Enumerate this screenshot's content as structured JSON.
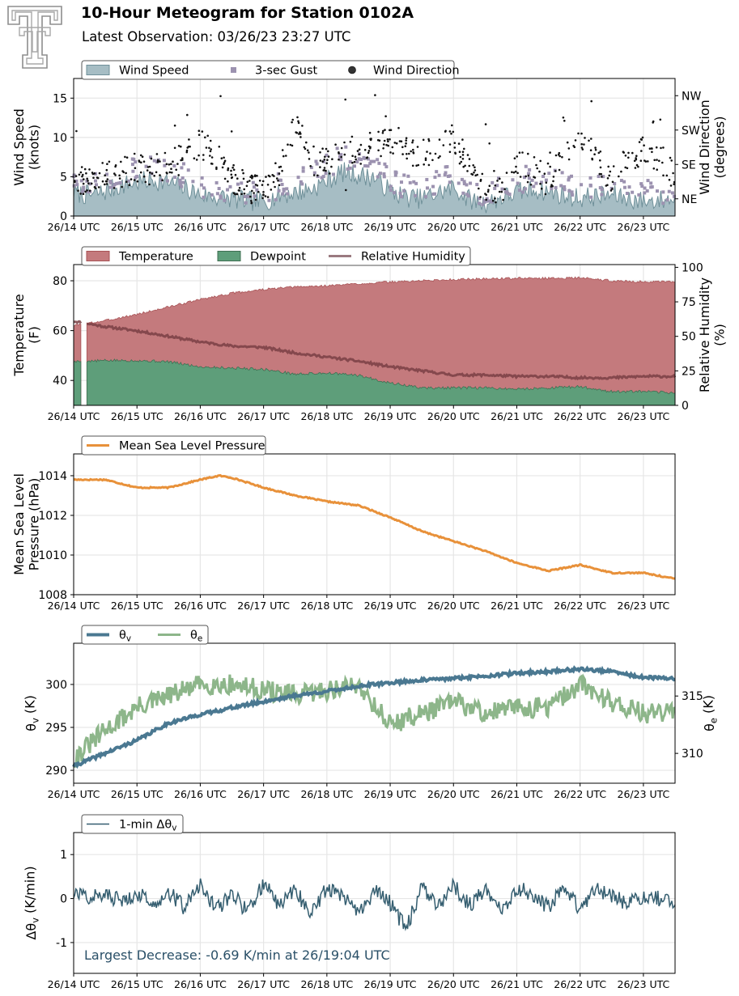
{
  "header": {
    "title": "10-Hour Meteogram for Station 0102A",
    "subtitle": "Latest Observation: 03/26/23 23:27 UTC",
    "logo": "tt-logo-icon"
  },
  "colors": {
    "wind_fill": "#a6bdc4",
    "wind_line": "#6f9099",
    "gust": "#9c92b0",
    "direction": "#111111",
    "temperature": "#c47a7d",
    "temperature_line": "#a85255",
    "dewpoint": "#5e9e7a",
    "dewpoint_line": "#3f6f52",
    "rh": "#7a3f44",
    "pressure": "#e8913a",
    "theta_v": "#4a7891",
    "theta_e": "#8db68a",
    "delta": "#355e70",
    "annotation": "#2a5068",
    "grid": "#e6e6e6"
  },
  "chart_data": [
    {
      "id": "wind",
      "type": "area",
      "title": "",
      "xlabel": "",
      "ylabel": "Wind Speed\n(knots)",
      "ylabel2": "Wind Direction\n(degrees)",
      "x_ticks": [
        "26/14 UTC",
        "26/15 UTC",
        "26/16 UTC",
        "26/17 UTC",
        "26/18 UTC",
        "26/19 UTC",
        "26/20 UTC",
        "26/21 UTC",
        "26/22 UTC",
        "26/23 UTC"
      ],
      "xlim": [
        0,
        9.5
      ],
      "ylim": [
        0,
        17.5
      ],
      "y_ticks": [
        0,
        5,
        10,
        15
      ],
      "ylim2": [
        0,
        360
      ],
      "y2_ticks": [
        {
          "value": 45,
          "label": "NE"
        },
        {
          "value": 135,
          "label": "SE"
        },
        {
          "value": 225,
          "label": "SW"
        },
        {
          "value": 315,
          "label": "NW"
        }
      ],
      "grid": true,
      "legend": {
        "placement": "top-left",
        "entries": [
          "Wind Speed",
          "3-sec Gust",
          "Wind Direction"
        ]
      },
      "series": [
        {
          "name": "Wind Speed",
          "type": "area",
          "x": [
            0,
            0.25,
            0.5,
            0.75,
            1,
            1.25,
            1.5,
            1.75,
            2,
            2.25,
            2.5,
            2.75,
            3,
            3.25,
            3.5,
            3.75,
            4,
            4.25,
            4.5,
            4.75,
            5,
            5.25,
            5.5,
            5.75,
            6,
            6.25,
            6.5,
            6.75,
            7,
            7.25,
            7.5,
            7.75,
            8,
            8.25,
            8.5,
            8.75,
            9,
            9.25,
            9.5
          ],
          "values": [
            3.0,
            2.6,
            3.1,
            3.9,
            4.3,
            4.6,
            4.2,
            3.6,
            2.7,
            2.4,
            2.2,
            1.9,
            1.8,
            2.6,
            3.0,
            3.4,
            4.5,
            5.6,
            5.2,
            4.9,
            3.2,
            2.4,
            2.2,
            2.9,
            3.6,
            2.1,
            1.6,
            2.3,
            3.0,
            3.4,
            3.1,
            2.6,
            2.3,
            2.5,
            2.7,
            2.2,
            1.9,
            2.0,
            2.2
          ]
        },
        {
          "name": "3-sec Gust",
          "type": "scatter",
          "x": [
            0,
            0.25,
            0.5,
            0.75,
            1,
            1.25,
            1.5,
            1.75,
            2,
            2.25,
            2.5,
            2.75,
            3,
            3.25,
            3.5,
            3.75,
            4,
            4.25,
            4.5,
            4.75,
            5,
            5.25,
            5.5,
            5.75,
            6,
            6.25,
            6.5,
            6.75,
            7,
            7.25,
            7.5,
            7.75,
            8,
            8.25,
            8.5,
            8.75,
            9,
            9.25,
            9.5
          ],
          "values": [
            4.4,
            3.8,
            4.5,
            5.2,
            5.8,
            6.0,
            5.5,
            4.9,
            3.7,
            3.3,
            3.0,
            2.6,
            2.5,
            3.6,
            4.1,
            4.6,
            6.0,
            7.3,
            6.8,
            6.4,
            4.4,
            3.3,
            3.0,
            3.9,
            4.9,
            2.9,
            2.3,
            3.2,
            4.1,
            4.6,
            4.2,
            3.6,
            3.2,
            3.4,
            3.7,
            3.0,
            2.6,
            2.8,
            3.0
          ]
        },
        {
          "name": "Wind Direction",
          "type": "scatter",
          "x": [
            0,
            0.25,
            0.5,
            0.75,
            1,
            1.25,
            1.5,
            1.75,
            2,
            2.25,
            2.5,
            2.75,
            3,
            3.25,
            3.5,
            3.75,
            4,
            4.25,
            4.5,
            4.75,
            5,
            5.25,
            5.5,
            5.75,
            6,
            6.25,
            6.5,
            6.75,
            7,
            7.25,
            7.5,
            7.75,
            8,
            8.25,
            8.5,
            8.75,
            9,
            9.25,
            9.5
          ],
          "values": [
            85,
            105,
            110,
            115,
            125,
            120,
            135,
            150,
            195,
            155,
            95,
            75,
            65,
            120,
            245,
            150,
            135,
            165,
            175,
            185,
            205,
            180,
            160,
            180,
            215,
            120,
            70,
            60,
            130,
            120,
            100,
            165,
            200,
            160,
            95,
            145,
            180,
            155,
            100
          ]
        }
      ]
    },
    {
      "id": "thermo",
      "type": "area",
      "title": "",
      "xlabel": "",
      "ylabel": "Temperature\n(F)",
      "ylabel2": "Relative Humidity\n(%)",
      "x_ticks": [
        "26/14 UTC",
        "26/15 UTC",
        "26/16 UTC",
        "26/17 UTC",
        "26/18 UTC",
        "26/19 UTC",
        "26/20 UTC",
        "26/21 UTC",
        "26/22 UTC",
        "26/23 UTC"
      ],
      "xlim": [
        0,
        9.5
      ],
      "ylim": [
        30,
        86.5
      ],
      "y_ticks": [
        40,
        60,
        80
      ],
      "ylim2": [
        0,
        102
      ],
      "y2_ticks": [
        0,
        25,
        50,
        75,
        100
      ],
      "grid": true,
      "legend": {
        "placement": "top-left",
        "entries": [
          "Temperature",
          "Dewpoint",
          "Relative Humidity"
        ]
      },
      "series": [
        {
          "name": "Temperature",
          "type": "area",
          "x": [
            0,
            0.5,
            1,
            1.5,
            2,
            2.5,
            3,
            3.5,
            4,
            4.5,
            5,
            5.5,
            6,
            6.5,
            7,
            7.5,
            8,
            8.5,
            9,
            9.5
          ],
          "values": [
            62.0,
            64.0,
            66.5,
            69.5,
            72.5,
            75.0,
            76.5,
            77.5,
            78.0,
            78.8,
            79.5,
            80.0,
            80.5,
            80.8,
            81.0,
            81.0,
            81.2,
            80.0,
            79.6,
            79.5
          ]
        },
        {
          "name": "Dewpoint",
          "type": "area",
          "x": [
            0,
            0.5,
            1,
            1.5,
            2,
            2.5,
            3,
            3.5,
            4,
            4.5,
            5,
            5.5,
            6,
            6.5,
            7,
            7.5,
            8,
            8.5,
            9,
            9.5
          ],
          "values": [
            47.5,
            48.0,
            48.0,
            47.5,
            45.5,
            45.0,
            44.5,
            42.5,
            43.0,
            42.0,
            39.0,
            37.0,
            37.0,
            37.0,
            36.5,
            37.0,
            37.5,
            35.5,
            35.5,
            35.0
          ]
        },
        {
          "name": "Relative Humidity",
          "type": "line",
          "x": [
            0,
            0.5,
            1,
            1.5,
            2,
            2.5,
            3,
            3.5,
            4,
            4.5,
            5,
            5.5,
            6,
            6.5,
            7,
            7.5,
            8,
            8.5,
            9,
            9.5
          ],
          "values": [
            61,
            57,
            54,
            50,
            46,
            43,
            42,
            38,
            35,
            32,
            28,
            25,
            22,
            22,
            21,
            21,
            20,
            20,
            21,
            21
          ]
        }
      ]
    },
    {
      "id": "pressure",
      "type": "line",
      "title": "",
      "xlabel": "",
      "ylabel": "Mean Sea Level\nPressure (hPa)",
      "x_ticks": [
        "26/14 UTC",
        "26/15 UTC",
        "26/16 UTC",
        "26/17 UTC",
        "26/18 UTC",
        "26/19 UTC",
        "26/20 UTC",
        "26/21 UTC",
        "26/22 UTC",
        "26/23 UTC"
      ],
      "xlim": [
        0,
        9.5
      ],
      "ylim": [
        1008,
        1015.1
      ],
      "y_ticks": [
        1008,
        1010,
        1012,
        1014
      ],
      "grid": true,
      "legend": {
        "placement": "top-left",
        "entries": [
          "Mean Sea Level Pressure"
        ]
      },
      "series": [
        {
          "name": "Mean Sea Level Pressure",
          "x": [
            0,
            0.5,
            1,
            1.5,
            2,
            2.3,
            2.5,
            3,
            3.5,
            4,
            4.5,
            5,
            5.5,
            6,
            6.5,
            7,
            7.5,
            8,
            8.5,
            9,
            9.5
          ],
          "values": [
            1013.8,
            1013.8,
            1013.4,
            1013.4,
            1013.8,
            1014.0,
            1013.9,
            1013.4,
            1013.0,
            1012.7,
            1012.5,
            1011.9,
            1011.2,
            1010.7,
            1010.2,
            1009.6,
            1009.2,
            1009.5,
            1009.1,
            1009.1,
            1008.8
          ]
        }
      ]
    },
    {
      "id": "theta",
      "type": "line",
      "title": "",
      "xlabel": "",
      "ylabel": "θ_v (K)",
      "ylabel2": "θ_e (K)",
      "x_ticks": [
        "26/14 UTC",
        "26/15 UTC",
        "26/16 UTC",
        "26/17 UTC",
        "26/18 UTC",
        "26/19 UTC",
        "26/20 UTC",
        "26/21 UTC",
        "26/22 UTC",
        "26/23 UTC"
      ],
      "xlim": [
        0,
        9.5
      ],
      "ylim": [
        288.5,
        304.8
      ],
      "y_ticks": [
        290,
        295,
        300
      ],
      "ylim2": [
        307.4,
        319.6
      ],
      "y2_ticks": [
        310,
        315
      ],
      "grid": true,
      "legend": {
        "placement": "top-left",
        "entries": [
          "θ_v",
          "θ_e"
        ]
      },
      "series": [
        {
          "name": "θ_v",
          "axis": "left",
          "x": [
            0,
            0.5,
            1,
            1.5,
            2,
            2.5,
            3,
            3.5,
            4,
            4.5,
            5,
            5.5,
            6,
            6.5,
            7,
            7.5,
            8,
            8.5,
            9,
            9.5
          ],
          "values": [
            290.5,
            292.0,
            293.5,
            295.5,
            296.5,
            297.3,
            298.0,
            298.7,
            299.2,
            299.8,
            300.2,
            300.5,
            300.7,
            301.0,
            301.3,
            301.5,
            301.8,
            301.5,
            300.8,
            300.7
          ]
        },
        {
          "name": "θ_e",
          "axis": "right",
          "x": [
            0,
            0.5,
            1,
            1.5,
            2,
            2.5,
            3,
            3.5,
            4,
            4.5,
            5,
            5.5,
            6,
            6.5,
            7,
            7.5,
            8,
            8.5,
            9,
            9.5
          ],
          "values": [
            309.5,
            312.0,
            314.0,
            315.0,
            316.0,
            316.0,
            315.5,
            315.0,
            315.5,
            316.0,
            312.5,
            313.5,
            314.5,
            313.5,
            314.0,
            314.0,
            316.0,
            314.5,
            313.5,
            313.5
          ]
        }
      ]
    },
    {
      "id": "delta",
      "type": "line",
      "title": "",
      "xlabel": "",
      "ylabel": "Δθ_v (K/min)",
      "x_ticks": [
        "26/14 UTC",
        "26/15 UTC",
        "26/16 UTC",
        "26/17 UTC",
        "26/18 UTC",
        "26/19 UTC",
        "26/20 UTC",
        "26/21 UTC",
        "26/22 UTC",
        "26/23 UTC"
      ],
      "xlim": [
        0,
        9.5
      ],
      "ylim": [
        -1.7,
        1.5
      ],
      "y_ticks": [
        -1,
        0,
        1
      ],
      "grid": true,
      "legend": {
        "placement": "top-left",
        "entries": [
          "1-min Δθ_v"
        ]
      },
      "annotation": "Largest Decrease: -0.69 K/min at 26/19:04 UTC",
      "series": [
        {
          "name": "1-min Δθ_v",
          "x": [
            0,
            0.25,
            0.5,
            0.75,
            1,
            1.25,
            1.5,
            1.75,
            2,
            2.25,
            2.5,
            2.75,
            3,
            3.25,
            3.5,
            3.75,
            4,
            4.25,
            4.5,
            4.75,
            5,
            5.25,
            5.5,
            5.75,
            6,
            6.25,
            6.5,
            6.75,
            7,
            7.25,
            7.5,
            7.75,
            8,
            8.25,
            8.5,
            8.75,
            9,
            9.25,
            9.5
          ],
          "values": [
            0.1,
            0.05,
            0.08,
            -0.05,
            0.12,
            -0.1,
            0.15,
            -0.2,
            0.3,
            -0.25,
            0.1,
            -0.3,
            0.35,
            -0.15,
            0.2,
            -0.35,
            0.25,
            0.1,
            -0.4,
            0.2,
            -0.1,
            -0.69,
            0.25,
            -0.2,
            0.3,
            -0.15,
            0.2,
            -0.3,
            0.25,
            0.1,
            -0.2,
            0.3,
            -0.25,
            0.2,
            0.05,
            -0.1,
            0.05,
            0.0,
            -0.05
          ]
        }
      ]
    }
  ]
}
